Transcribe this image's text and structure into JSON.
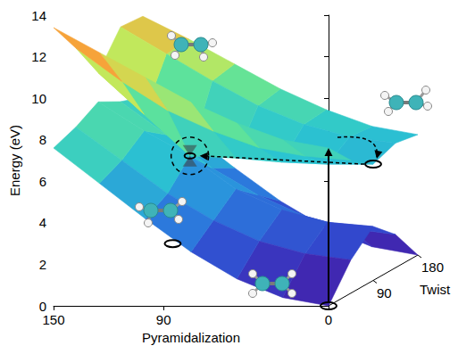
{
  "chart_data": {
    "type": "surface3d",
    "xlabel": "Pyramidalization",
    "x": [
      0,
      25,
      50,
      75,
      100,
      125,
      150
    ],
    "xlim": [
      0,
      150
    ],
    "xticks": [
      0,
      90,
      150
    ],
    "ylabel": "Twist",
    "y": [
      0,
      45,
      90,
      135,
      180
    ],
    "ylim": [
      0,
      180
    ],
    "yticks": [
      90,
      180
    ],
    "zlabel": "Energy (eV)",
    "zlim": [
      0,
      14
    ],
    "zticks": [
      0,
      2,
      4,
      6,
      8,
      10,
      12,
      14
    ],
    "surfaces": [
      {
        "values": [
          [
            0.0,
            0.4,
            1.3,
            2.6,
            4.2,
            5.9,
            7.6
          ],
          [
            1.6,
            1.9,
            2.5,
            3.5,
            4.8,
            6.4,
            8.0
          ],
          [
            2.6,
            2.8,
            3.4,
            4.4,
            6.0,
            7.2,
            8.6
          ],
          [
            1.6,
            1.9,
            2.5,
            3.5,
            4.8,
            6.4,
            8.0
          ],
          [
            0.0,
            0.4,
            1.3,
            2.6,
            4.2,
            5.9,
            7.6
          ]
        ]
      },
      {
        "values": [
          [
            7.6,
            8.0,
            8.8,
            9.8,
            11.0,
            12.2,
            13.4
          ],
          [
            6.4,
            6.6,
            7.0,
            7.8,
            8.8,
            10.2,
            11.8
          ],
          [
            5.6,
            5.6,
            5.7,
            5.9,
            6.0,
            8.0,
            10.0
          ],
          [
            6.0,
            6.3,
            6.9,
            7.8,
            9.0,
            10.3,
            11.6
          ],
          [
            5.8,
            6.2,
            7.0,
            8.0,
            9.2,
            10.4,
            11.5
          ]
        ]
      }
    ],
    "points": [
      [
        0,
        0,
        0.0
      ],
      [
        0,
        90,
        5.6
      ],
      [
        100,
        90,
        6.0
      ],
      [
        85,
        0,
        3.0
      ]
    ]
  }
}
